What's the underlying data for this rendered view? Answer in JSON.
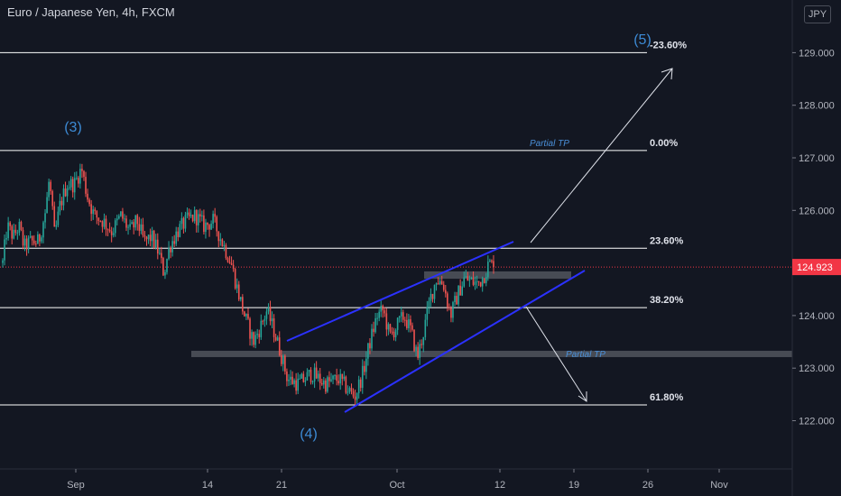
{
  "header": {
    "title": "Euro / Japanese Yen, 4h, FXCM",
    "currency_button": "JPY"
  },
  "price_axis": {
    "ticks": [
      "129.000",
      "128.000",
      "127.000",
      "126.000",
      "125.000",
      "124.000",
      "123.000",
      "122.000"
    ],
    "current_price_label": "124.923"
  },
  "time_axis": {
    "ticks": [
      "Sep",
      "14",
      "21",
      "Oct",
      "12",
      "19",
      "26",
      "Nov"
    ]
  },
  "fib_levels": [
    {
      "label": "-23.60%",
      "value": 129.0
    },
    {
      "label": "0.00%",
      "value": 127.14
    },
    {
      "label": "23.60%",
      "value": 125.28
    },
    {
      "label": "38.20%",
      "value": 124.15
    },
    {
      "label": "61.80%",
      "value": 122.3
    }
  ],
  "annotations": {
    "wave3": "(3)",
    "wave4": "(4)",
    "wave5": "(5)",
    "partial_tp_1": "Partial TP",
    "partial_tp_2": "Partial TP"
  },
  "colors": {
    "background": "#131722",
    "up_candle": "#26a69a",
    "down_candle": "#ef5350",
    "channel": "#2b31ff",
    "fib_line": "#ffffff",
    "wave_label": "#3d8bd6",
    "price_badge": "#f23645",
    "zone": "#5a5d66"
  },
  "chart_data": {
    "type": "candlestick",
    "title": "Euro / Japanese Yen, 4h, FXCM",
    "current_price": 124.923,
    "ylim": [
      121.55,
      129.75
    ],
    "x_ticks": [
      "Sep",
      "14",
      "21",
      "Oct",
      "12",
      "19",
      "26",
      "Nov"
    ],
    "y_ticks": [
      122,
      123,
      124,
      125,
      126,
      127,
      128,
      129
    ],
    "close_path": [
      {
        "x": 0,
        "close": 125.0
      },
      {
        "x": 5,
        "close": 125.7
      },
      {
        "x": 12,
        "close": 125.5
      },
      {
        "x": 18,
        "close": 125.7
      },
      {
        "x": 24,
        "close": 125.3
      },
      {
        "x": 30,
        "close": 125.4
      },
      {
        "x": 40,
        "close": 125.4
      },
      {
        "x": 48,
        "close": 126.0
      },
      {
        "x": 52,
        "close": 126.6
      },
      {
        "x": 58,
        "close": 125.5
      },
      {
        "x": 64,
        "close": 126.1
      },
      {
        "x": 72,
        "close": 126.5
      },
      {
        "x": 80,
        "close": 126.5
      },
      {
        "x": 88,
        "close": 126.8
      },
      {
        "x": 94,
        "close": 126.3
      },
      {
        "x": 102,
        "close": 125.9
      },
      {
        "x": 112,
        "close": 125.8
      },
      {
        "x": 122,
        "close": 125.6
      },
      {
        "x": 132,
        "close": 125.9
      },
      {
        "x": 142,
        "close": 125.6
      },
      {
        "x": 150,
        "close": 125.8
      },
      {
        "x": 158,
        "close": 125.4
      },
      {
        "x": 166,
        "close": 125.5
      },
      {
        "x": 174,
        "close": 125.2
      },
      {
        "x": 180,
        "close": 124.8
      },
      {
        "x": 186,
        "close": 125.3
      },
      {
        "x": 195,
        "close": 125.6
      },
      {
        "x": 205,
        "close": 125.8
      },
      {
        "x": 215,
        "close": 125.9
      },
      {
        "x": 225,
        "close": 125.7
      },
      {
        "x": 235,
        "close": 125.8
      },
      {
        "x": 245,
        "close": 125.4
      },
      {
        "x": 255,
        "close": 125.0
      },
      {
        "x": 262,
        "close": 124.5
      },
      {
        "x": 270,
        "close": 124.0
      },
      {
        "x": 280,
        "close": 123.5
      },
      {
        "x": 288,
        "close": 123.8
      },
      {
        "x": 295,
        "close": 124.1
      },
      {
        "x": 303,
        "close": 123.7
      },
      {
        "x": 310,
        "close": 123.3
      },
      {
        "x": 318,
        "close": 122.8
      },
      {
        "x": 330,
        "close": 122.7
      },
      {
        "x": 345,
        "close": 122.9
      },
      {
        "x": 360,
        "close": 122.7
      },
      {
        "x": 375,
        "close": 122.8
      },
      {
        "x": 385,
        "close": 122.6
      },
      {
        "x": 393,
        "close": 122.45
      },
      {
        "x": 402,
        "close": 122.9
      },
      {
        "x": 410,
        "close": 123.5
      },
      {
        "x": 418,
        "close": 124.0
      },
      {
        "x": 425,
        "close": 124.1
      },
      {
        "x": 432,
        "close": 123.6
      },
      {
        "x": 440,
        "close": 123.8
      },
      {
        "x": 448,
        "close": 124.0
      },
      {
        "x": 456,
        "close": 123.7
      },
      {
        "x": 463,
        "close": 123.2
      },
      {
        "x": 470,
        "close": 123.7
      },
      {
        "x": 477,
        "close": 124.3
      },
      {
        "x": 484,
        "close": 124.7
      },
      {
        "x": 492,
        "close": 124.6
      },
      {
        "x": 500,
        "close": 124.0
      },
      {
        "x": 508,
        "close": 124.4
      },
      {
        "x": 515,
        "close": 124.7
      },
      {
        "x": 523,
        "close": 124.65
      },
      {
        "x": 530,
        "close": 124.6
      },
      {
        "x": 537,
        "close": 124.75
      },
      {
        "x": 543,
        "close": 125.0
      },
      {
        "x": 549,
        "close": 124.92
      }
    ],
    "fibonacci": [
      {
        "label": "-23.60%",
        "value": 129.0
      },
      {
        "label": "0.00%",
        "value": 127.14
      },
      {
        "label": "23.60%",
        "value": 125.28
      },
      {
        "label": "38.20%",
        "value": 124.15
      },
      {
        "label": "61.80%",
        "value": 122.3
      }
    ],
    "zones": [
      {
        "label": "",
        "low": 124.7,
        "high": 124.84
      },
      {
        "label": "Partial TP",
        "low": 123.21,
        "high": 123.33
      }
    ],
    "wave_labels": [
      "(3)",
      "(4)",
      "(5)"
    ]
  }
}
